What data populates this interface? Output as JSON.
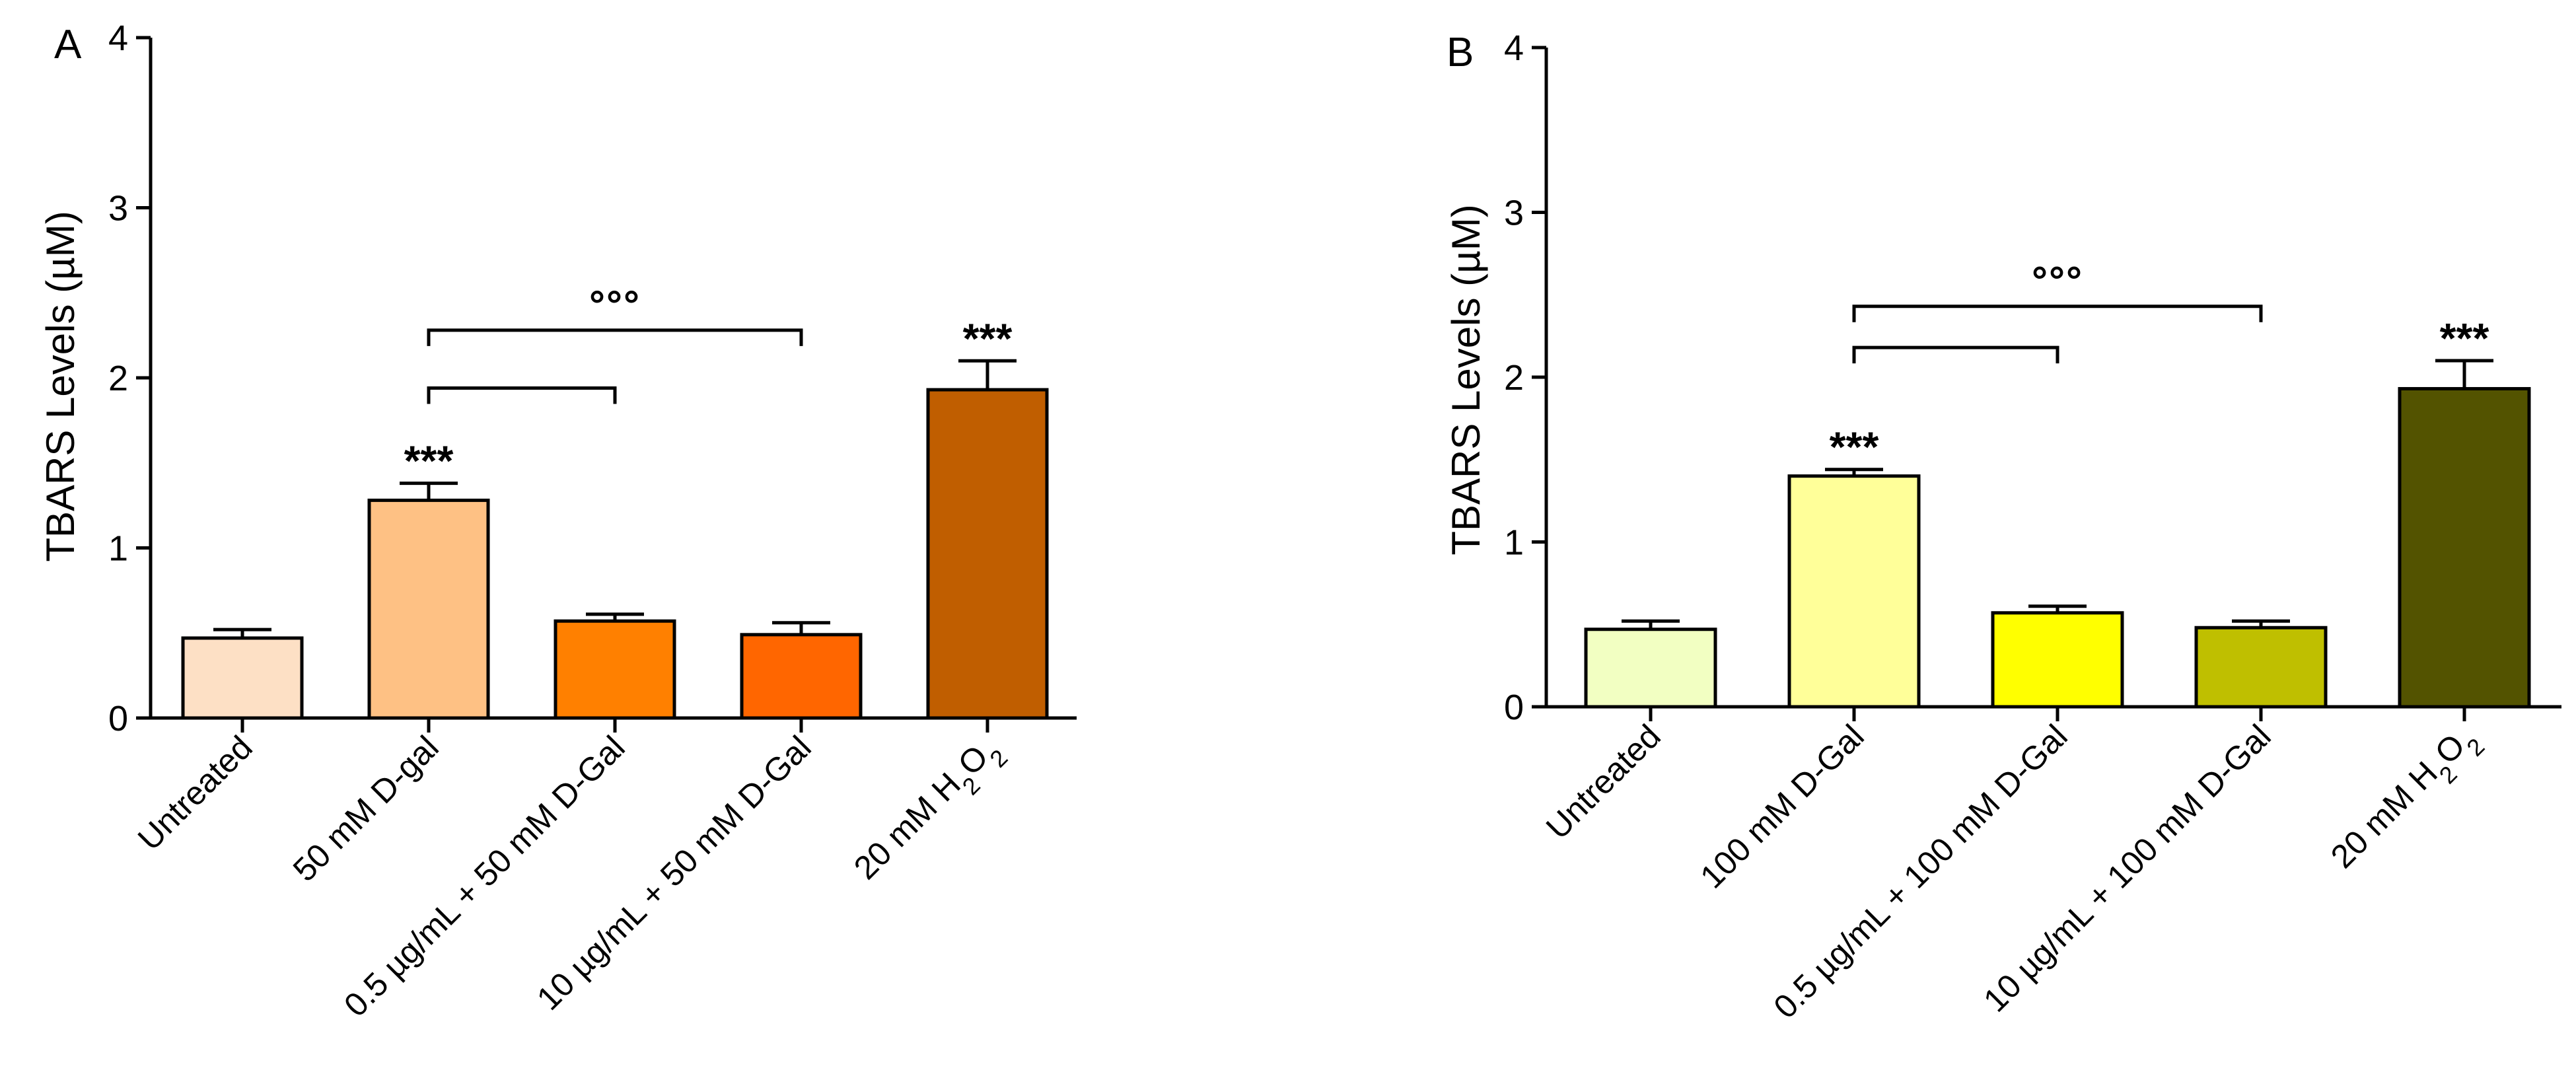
{
  "chart_data": [
    {
      "panel_label": "A",
      "type": "bar",
      "ylabel": "TBARS Levels (µM)",
      "ylim": [
        0,
        4
      ],
      "yticks": [
        "0",
        "1",
        "2",
        "3",
        "4"
      ],
      "categories": [
        {
          "label": "Untreated"
        },
        {
          "label": "50 mM D-gal"
        },
        {
          "label": "0.5 µg/mL + 50 mM D-Gal"
        },
        {
          "label": "10 µg/mL + 50 mM D-Gal"
        },
        {
          "label": "20 mM H",
          "sub": "2",
          "mid": "O",
          "sub2": "2"
        }
      ],
      "values": [
        0.47,
        1.28,
        0.57,
        0.49,
        1.93
      ],
      "errors": [
        0.05,
        0.1,
        0.04,
        0.07,
        0.17
      ],
      "colors": [
        "#FDE0C5",
        "#FEC184",
        "#FF8000",
        "#FF6600",
        "#C05E00"
      ],
      "significance": [
        "",
        "***",
        "",
        "",
        "***"
      ],
      "brackets": [
        {
          "from": 1,
          "to": 2,
          "y": 1.94,
          "label": ""
        },
        {
          "from": 1,
          "to": 3,
          "y": 2.28,
          "label": "°°°"
        }
      ]
    },
    {
      "panel_label": "B",
      "type": "bar",
      "ylabel": "TBARS Levels (µM)",
      "ylim": [
        0,
        4
      ],
      "yticks": [
        "0",
        "1",
        "2",
        "3",
        "4"
      ],
      "categories": [
        {
          "label": "Untreated"
        },
        {
          "label": "100 mM D-Gal"
        },
        {
          "label": "0.5 µg/mL + 100 mM D-Gal"
        },
        {
          "label": "10 µg/mL + 100 mM D-Gal"
        },
        {
          "label": "20 mM H",
          "sub": "2",
          "mid": "O",
          "sub2": "2"
        }
      ],
      "values": [
        0.47,
        1.4,
        0.57,
        0.48,
        1.93
      ],
      "errors": [
        0.05,
        0.04,
        0.04,
        0.04,
        0.17
      ],
      "colors": [
        "#F2FFC2",
        "#FFFF99",
        "#FFFF00",
        "#BFBF00",
        "#535300"
      ],
      "significance": [
        "",
        "***",
        "",
        "",
        "***"
      ],
      "brackets": [
        {
          "from": 1,
          "to": 2,
          "y": 2.18,
          "label": ""
        },
        {
          "from": 1,
          "to": 3,
          "y": 2.43,
          "label": "°°°"
        }
      ]
    }
  ]
}
